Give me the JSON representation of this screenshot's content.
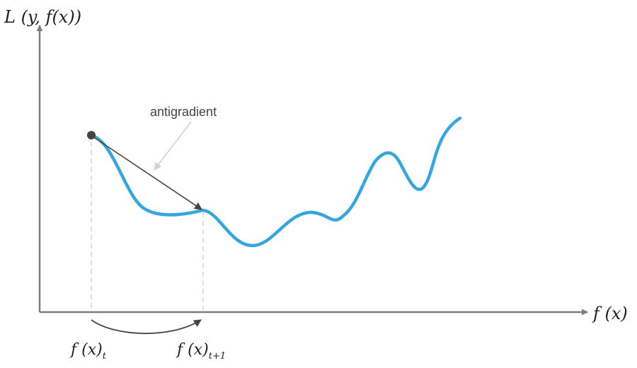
{
  "diagram": {
    "y_axis_label": "L (y, f(x))",
    "x_axis_label": "f (x)",
    "annotation": "antigradient",
    "step_labels": {
      "current": {
        "base": "f (x)",
        "sub": "t"
      },
      "next": {
        "base": "f (x)",
        "sub": "t+1"
      }
    },
    "colors": {
      "curve": "#35a6dd",
      "axis": "#7d7d7d",
      "arrow": "#444444",
      "pointer": "#d2d2d2",
      "guide": "#cccccc",
      "point": "#444444"
    }
  }
}
